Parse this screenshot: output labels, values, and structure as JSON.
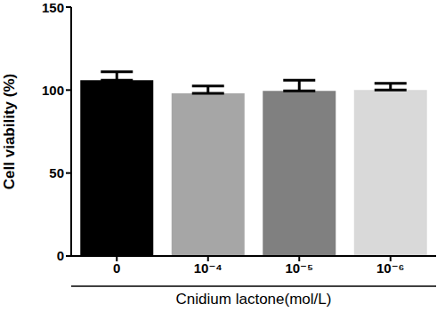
{
  "chart_data": {
    "type": "bar",
    "categories": [
      "0",
      "10⁻⁴",
      "10⁻⁵",
      "10⁻⁶"
    ],
    "values": [
      106,
      98,
      99.5,
      100
    ],
    "error": [
      5,
      4.5,
      6.5,
      4
    ],
    "colors": [
      "#000000",
      "#a6a6a6",
      "#808080",
      "#d9d9d9"
    ],
    "x_label": "Cnidium lactone(mol/L)",
    "y_label": "Cell viability (%)",
    "ylim": [
      0,
      150
    ],
    "yticks": [
      0,
      50,
      100,
      150
    ],
    "grid": false
  }
}
